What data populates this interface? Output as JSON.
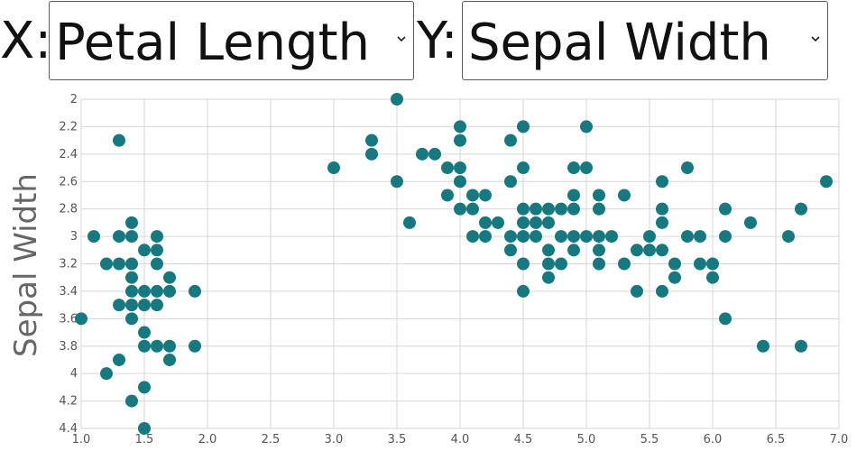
{
  "controls": {
    "x_prefix": "X:",
    "x_selected": "Petal Length",
    "y_prefix": "Y:",
    "y_selected": "Sepal Width"
  },
  "chart_data": {
    "type": "scatter",
    "ylabel": "Sepal Width",
    "xlabel": "",
    "xlim": [
      1.0,
      7.0
    ],
    "ylim": [
      2.0,
      4.4
    ],
    "y_reversed": true,
    "xticks": [
      "1.0",
      "1.5",
      "2.0",
      "2.5",
      "3.0",
      "3.5",
      "4.0",
      "4.5",
      "5.0",
      "5.5",
      "6.0",
      "6.5",
      "7.0"
    ],
    "yticks": [
      "2",
      "2.2",
      "2.4",
      "2.6",
      "2.8",
      "3",
      "3.2",
      "3.4",
      "3.6",
      "3.8",
      "4",
      "4.2",
      "4.4"
    ],
    "grid": true,
    "marker_color": "#17797f",
    "points": [
      [
        1.0,
        3.6
      ],
      [
        1.1,
        3.0
      ],
      [
        1.2,
        3.2
      ],
      [
        1.2,
        4.0
      ],
      [
        1.3,
        2.3
      ],
      [
        1.3,
        3.0
      ],
      [
        1.3,
        3.2
      ],
      [
        1.3,
        3.5
      ],
      [
        1.3,
        3.9
      ],
      [
        1.4,
        2.9
      ],
      [
        1.4,
        3.0
      ],
      [
        1.4,
        3.2
      ],
      [
        1.4,
        3.3
      ],
      [
        1.4,
        3.4
      ],
      [
        1.4,
        3.5
      ],
      [
        1.4,
        3.6
      ],
      [
        1.4,
        4.2
      ],
      [
        1.5,
        3.1
      ],
      [
        1.5,
        3.4
      ],
      [
        1.5,
        3.5
      ],
      [
        1.5,
        3.7
      ],
      [
        1.5,
        3.8
      ],
      [
        1.5,
        4.1
      ],
      [
        1.5,
        4.4
      ],
      [
        1.6,
        3.0
      ],
      [
        1.6,
        3.1
      ],
      [
        1.6,
        3.2
      ],
      [
        1.6,
        3.4
      ],
      [
        1.6,
        3.5
      ],
      [
        1.6,
        3.8
      ],
      [
        1.7,
        3.3
      ],
      [
        1.7,
        3.4
      ],
      [
        1.7,
        3.8
      ],
      [
        1.7,
        3.9
      ],
      [
        1.9,
        3.4
      ],
      [
        1.9,
        3.8
      ],
      [
        3.0,
        2.5
      ],
      [
        3.3,
        2.3
      ],
      [
        3.3,
        2.4
      ],
      [
        3.5,
        2.0
      ],
      [
        3.5,
        2.6
      ],
      [
        3.6,
        2.9
      ],
      [
        3.7,
        2.4
      ],
      [
        3.8,
        2.4
      ],
      [
        3.9,
        2.5
      ],
      [
        3.9,
        2.7
      ],
      [
        4.0,
        2.2
      ],
      [
        4.0,
        2.3
      ],
      [
        4.0,
        2.5
      ],
      [
        4.0,
        2.6
      ],
      [
        4.0,
        2.8
      ],
      [
        4.1,
        2.7
      ],
      [
        4.1,
        2.8
      ],
      [
        4.1,
        3.0
      ],
      [
        4.2,
        2.7
      ],
      [
        4.2,
        2.9
      ],
      [
        4.2,
        3.0
      ],
      [
        4.3,
        2.9
      ],
      [
        4.4,
        2.3
      ],
      [
        4.4,
        2.6
      ],
      [
        4.4,
        3.0
      ],
      [
        4.4,
        3.1
      ],
      [
        4.5,
        2.2
      ],
      [
        4.5,
        2.5
      ],
      [
        4.5,
        2.8
      ],
      [
        4.5,
        2.9
      ],
      [
        4.5,
        3.0
      ],
      [
        4.5,
        3.2
      ],
      [
        4.5,
        3.4
      ],
      [
        4.6,
        2.8
      ],
      [
        4.6,
        2.9
      ],
      [
        4.6,
        3.0
      ],
      [
        4.7,
        2.8
      ],
      [
        4.7,
        2.9
      ],
      [
        4.7,
        3.1
      ],
      [
        4.7,
        3.2
      ],
      [
        4.7,
        3.3
      ],
      [
        4.8,
        2.8
      ],
      [
        4.8,
        3.0
      ],
      [
        4.8,
        3.2
      ],
      [
        4.9,
        2.5
      ],
      [
        4.9,
        2.7
      ],
      [
        4.9,
        2.8
      ],
      [
        4.9,
        3.0
      ],
      [
        4.9,
        3.1
      ],
      [
        5.0,
        2.2
      ],
      [
        5.0,
        2.5
      ],
      [
        5.0,
        3.0
      ],
      [
        5.1,
        2.7
      ],
      [
        5.1,
        2.8
      ],
      [
        5.1,
        3.0
      ],
      [
        5.1,
        3.1
      ],
      [
        5.1,
        3.2
      ],
      [
        5.2,
        3.0
      ],
      [
        5.3,
        2.7
      ],
      [
        5.3,
        3.2
      ],
      [
        5.4,
        3.1
      ],
      [
        5.4,
        3.4
      ],
      [
        5.5,
        3.0
      ],
      [
        5.5,
        3.1
      ],
      [
        5.6,
        2.6
      ],
      [
        5.6,
        2.8
      ],
      [
        5.6,
        2.9
      ],
      [
        5.6,
        3.1
      ],
      [
        5.6,
        3.4
      ],
      [
        5.7,
        3.2
      ],
      [
        5.7,
        3.3
      ],
      [
        5.8,
        2.5
      ],
      [
        5.8,
        3.0
      ],
      [
        5.9,
        3.0
      ],
      [
        5.9,
        3.2
      ],
      [
        6.0,
        3.2
      ],
      [
        6.0,
        3.3
      ],
      [
        6.1,
        2.8
      ],
      [
        6.1,
        3.0
      ],
      [
        6.1,
        3.6
      ],
      [
        6.3,
        2.9
      ],
      [
        6.4,
        3.8
      ],
      [
        6.6,
        3.0
      ],
      [
        6.7,
        2.8
      ],
      [
        6.7,
        3.8
      ],
      [
        6.9,
        2.6
      ]
    ]
  }
}
